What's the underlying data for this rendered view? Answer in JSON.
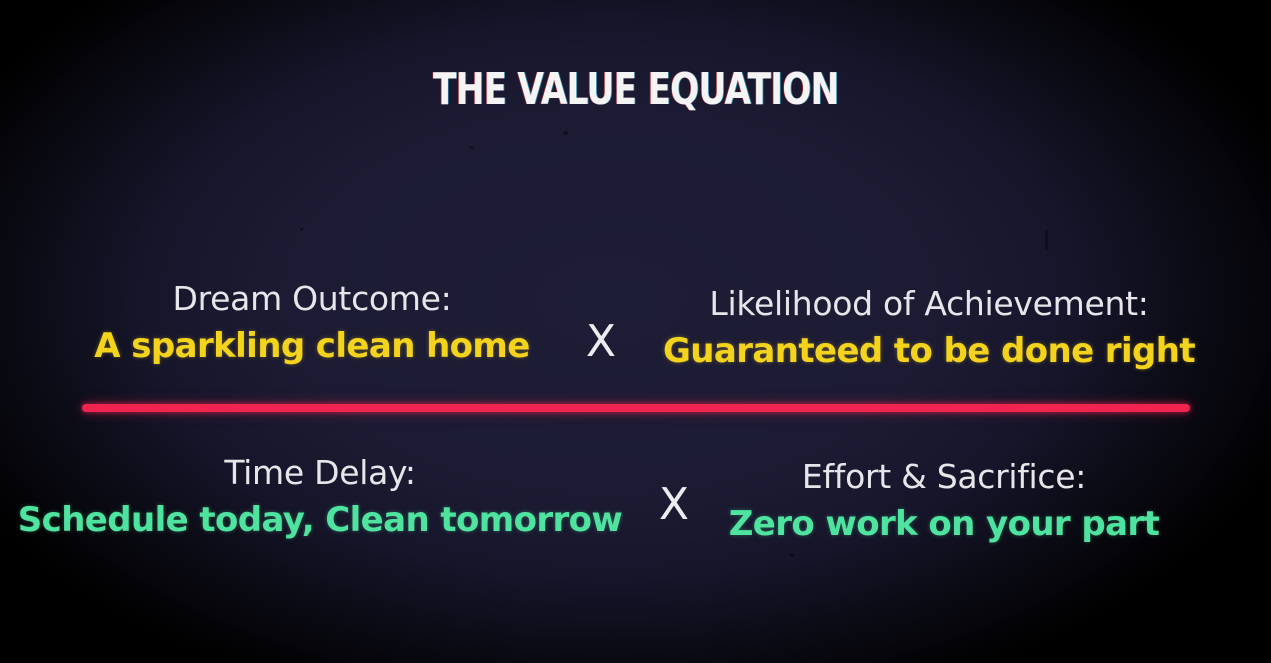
{
  "title": "THE VALUE EQUATION",
  "numerator": {
    "left": {
      "label": "Dream Outcome:",
      "value": "A sparkling clean home"
    },
    "operator": "X",
    "right": {
      "label": "Likelihood of Achievement:",
      "value": "Guaranteed to be done right"
    }
  },
  "denominator": {
    "left": {
      "label": "Time Delay:",
      "value": "Schedule today, Clean tomorrow"
    },
    "operator": "X",
    "right": {
      "label": "Effort & Sacrifice:",
      "value": "Zero work on your part"
    }
  },
  "colors": {
    "numerator_value": "#f4d31d",
    "denominator_value": "#4fe3a0",
    "divider": "#f0254f",
    "background": "#1c1b33"
  }
}
